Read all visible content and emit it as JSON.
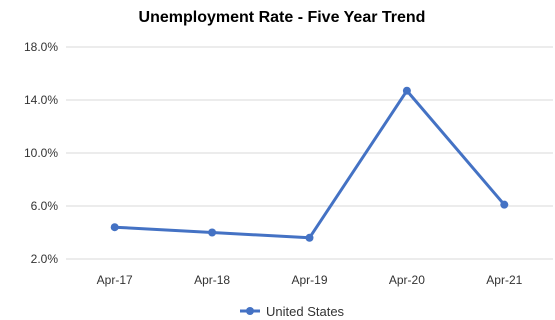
{
  "chart_data": {
    "type": "line",
    "title": "Unemployment Rate - Five Year Trend",
    "xlabel": "",
    "ylabel": "",
    "categories": [
      "Apr-17",
      "Apr-18",
      "Apr-19",
      "Apr-20",
      "Apr-21"
    ],
    "y_ticks": [
      "2.0%",
      "6.0%",
      "10.0%",
      "14.0%",
      "18.0%"
    ],
    "ylim": [
      2.0,
      18.0
    ],
    "grid": true,
    "legend_position": "bottom",
    "series": [
      {
        "name": "United States",
        "color": "#4472c4",
        "values": [
          4.4,
          4.0,
          3.6,
          14.7,
          6.1
        ]
      }
    ]
  }
}
